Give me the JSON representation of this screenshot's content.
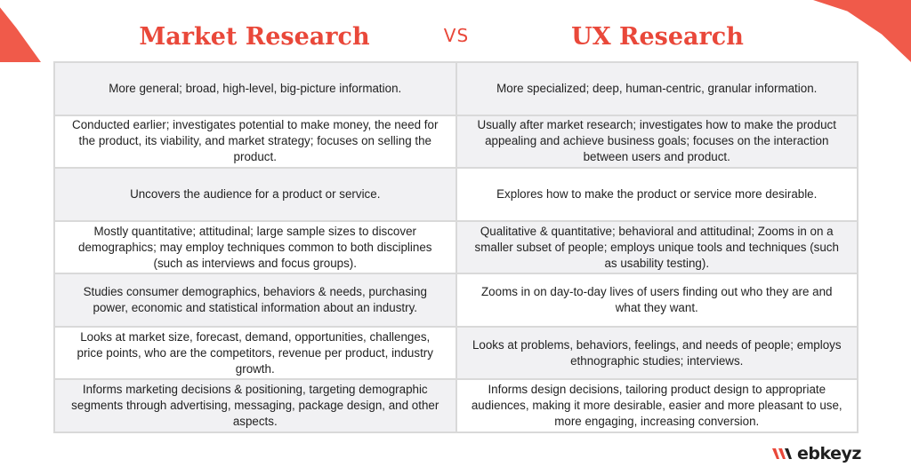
{
  "header": {
    "left_title": "Market Research",
    "vs": "VS",
    "right_title": "UX Research"
  },
  "rows": [
    {
      "market": "More general; broad, high-level, big-picture information.",
      "ux": "More specialized; deep, human-centric, granular information."
    },
    {
      "market": "Conducted earlier; investigates potential to make money, the need for the product, its viability, and market strategy; focuses on selling the product.",
      "ux": "Usually after market research; investigates how to make the product appealing and achieve business goals; focuses on the interaction between users and product."
    },
    {
      "market": "Uncovers the audience for a product or service.",
      "ux": "Explores how to make the product or service more desirable."
    },
    {
      "market": "Mostly quantitative; attitudinal; large sample sizes to discover demographics; may employ techniques common to both disciplines (such as interviews and focus groups).",
      "ux": "Qualitative & quantitative; behavioral and attitudinal; Zooms in on a smaller subset of people; employs unique tools and techniques (such as usability testing)."
    },
    {
      "market": "Studies consumer demographics, behaviors & needs, purchasing power, economic and statistical information about an industry.",
      "ux": "Zooms in on day-to-day lives of users finding out who they are and what they want."
    },
    {
      "market": "Looks at market size, forecast, demand, opportunities, challenges, price points, who are the competitors, revenue per product, industry growth.",
      "ux": "Looks at problems, behaviors, feelings, and needs of people; employs ethnographic studies; interviews."
    },
    {
      "market": "Informs marketing decisions & positioning, targeting demographic segments through advertising, messaging, package design, and other aspects.",
      "ux": "Informs design decisions, tailoring product design to appropriate audiences, making it more desirable, easier and more pleasant to use, more engaging, increasing conversion."
    }
  ],
  "logo": {
    "icon": "webkeyz-w-mark-icon",
    "text": "ebkeyz",
    "accent_color": "#e9483a"
  },
  "colors": {
    "accent": "#e9483a",
    "shade": "#f1f1f3",
    "border": "#d9d9d9"
  }
}
